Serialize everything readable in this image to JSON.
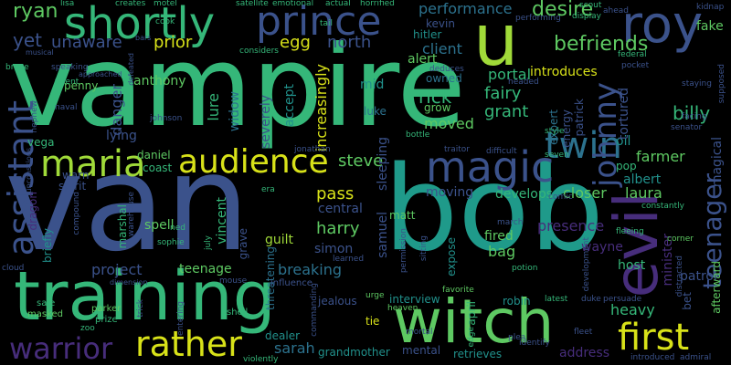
{
  "title": "",
  "words": [
    {
      "text": "vampire",
      "color": "#35b779"
    },
    {
      "text": "van",
      "color": "#3b528b"
    },
    {
      "text": "bob",
      "color": "#1f9a8a"
    },
    {
      "text": "training",
      "color": "#35b779"
    },
    {
      "text": "witch",
      "color": "#5ec962"
    },
    {
      "text": "shortly",
      "color": "#35b779"
    },
    {
      "text": "prince",
      "color": "#3b528b"
    },
    {
      "text": "u",
      "color": "#a0da39"
    },
    {
      "text": "roy",
      "color": "#3b528b"
    },
    {
      "text": "evil",
      "color": "#472d7b"
    },
    {
      "text": "magic",
      "color": "#3b528b"
    },
    {
      "text": "twin",
      "color": "#2c728e"
    },
    {
      "text": "maria",
      "color": "#a0da39"
    },
    {
      "text": "audience",
      "color": "#d8e219"
    },
    {
      "text": "assistant",
      "color": "#3b528b"
    },
    {
      "text": "rather",
      "color": "#d8e219"
    },
    {
      "text": "first",
      "color": "#d8e219"
    },
    {
      "text": "warrior",
      "color": "#472d7b"
    },
    {
      "text": "johnny",
      "color": "#3b528b"
    },
    {
      "text": "teenager",
      "color": "#3b528b"
    },
    {
      "text": "ryan",
      "color": "#5ec962"
    },
    {
      "text": "yet",
      "color": "#3b528b"
    },
    {
      "text": "unaware",
      "color": "#3b528b"
    },
    {
      "text": "prior",
      "color": "#d8e219"
    },
    {
      "text": "egg",
      "color": "#d8e219"
    },
    {
      "text": "north",
      "color": "#3b528b"
    },
    {
      "text": "client",
      "color": "#2c728e"
    },
    {
      "text": "befriends",
      "color": "#5ec962"
    },
    {
      "text": "performance",
      "color": "#2c728e"
    },
    {
      "text": "desire",
      "color": "#5ec962"
    },
    {
      "text": "kevin",
      "color": "#3b528b"
    },
    {
      "text": "hitler",
      "color": "#21918c"
    },
    {
      "text": "alert",
      "color": "#5ec962"
    },
    {
      "text": "introduces",
      "color": "#d8e219"
    },
    {
      "text": "fake",
      "color": "#5ec962"
    },
    {
      "text": "anthony",
      "color": "#5ec962"
    },
    {
      "text": "penny",
      "color": "#5ec962"
    },
    {
      "text": "danger",
      "color": "#3b528b"
    },
    {
      "text": "lure",
      "color": "#35b779"
    },
    {
      "text": "widow",
      "color": "#2c728e"
    },
    {
      "text": "severely",
      "color": "#3b528b"
    },
    {
      "text": "accept",
      "color": "#21918c"
    },
    {
      "text": "increasingly",
      "color": "#d8e219"
    },
    {
      "text": "rick",
      "color": "#35b779"
    },
    {
      "text": "grant",
      "color": "#35b779"
    },
    {
      "text": "moved",
      "color": "#5ec962"
    },
    {
      "text": "fairy",
      "color": "#35b779"
    },
    {
      "text": "portal",
      "color": "#35b779"
    },
    {
      "text": "owned",
      "color": "#2c728e"
    },
    {
      "text": "mid",
      "color": "#21918c"
    },
    {
      "text": "luke",
      "color": "#2c728e"
    },
    {
      "text": "grow",
      "color": "#5ec962"
    },
    {
      "text": "billy",
      "color": "#35b779"
    },
    {
      "text": "oil",
      "color": "#21918c"
    },
    {
      "text": "tortured",
      "color": "#3b528b"
    },
    {
      "text": "patrick",
      "color": "#3b528b"
    },
    {
      "text": "expert",
      "color": "#2c728e"
    },
    {
      "text": "energy",
      "color": "#3b528b"
    },
    {
      "text": "farmer",
      "color": "#5ec962"
    },
    {
      "text": "pop",
      "color": "#35b779"
    },
    {
      "text": "steve",
      "color": "#5ec962"
    },
    {
      "text": "sleeping",
      "color": "#3b528b"
    },
    {
      "text": "pass",
      "color": "#d8e219"
    },
    {
      "text": "daniel",
      "color": "#5ec962"
    },
    {
      "text": "coast",
      "color": "#35b779"
    },
    {
      "text": "lying",
      "color": "#3b528b"
    },
    {
      "text": "vega",
      "color": "#35b779"
    },
    {
      "text": "warn",
      "color": "#3b528b"
    },
    {
      "text": "spirit",
      "color": "#3b528b"
    },
    {
      "text": "moving",
      "color": "#3b528b"
    },
    {
      "text": "develops",
      "color": "#35b779"
    },
    {
      "text": "closer",
      "color": "#5ec962"
    },
    {
      "text": "laura",
      "color": "#5ec962"
    },
    {
      "text": "albert",
      "color": "#21918c"
    },
    {
      "text": "spell",
      "color": "#5ec962"
    },
    {
      "text": "vincent",
      "color": "#35b779"
    },
    {
      "text": "marshal",
      "color": "#35b779"
    },
    {
      "text": "harry",
      "color": "#5ec962"
    },
    {
      "text": "central",
      "color": "#3b528b"
    },
    {
      "text": "matt",
      "color": "#5ec962"
    },
    {
      "text": "simon",
      "color": "#3b528b"
    },
    {
      "text": "samuel",
      "color": "#3b528b"
    },
    {
      "text": "presence",
      "color": "#472d7b"
    },
    {
      "text": "fired",
      "color": "#5ec962"
    },
    {
      "text": "bag",
      "color": "#5ec962"
    },
    {
      "text": "wayne",
      "color": "#472d7b"
    },
    {
      "text": "host",
      "color": "#35b779"
    },
    {
      "text": "minister",
      "color": "#472d7b"
    },
    {
      "text": "magical",
      "color": "#3b528b"
    },
    {
      "text": "patrol",
      "color": "#3b528b"
    },
    {
      "text": "afterward",
      "color": "#5ec962"
    },
    {
      "text": "dragon",
      "color": "#472d7b"
    },
    {
      "text": "briefly",
      "color": "#21918c"
    },
    {
      "text": "project",
      "color": "#3b528b"
    },
    {
      "text": "teenage",
      "color": "#5ec962"
    },
    {
      "text": "grave",
      "color": "#3b528b"
    },
    {
      "text": "guilt",
      "color": "#a0da39"
    },
    {
      "text": "breaking",
      "color": "#2c728e"
    },
    {
      "text": "threatening",
      "color": "#2c728e"
    },
    {
      "text": "expose",
      "color": "#21918c"
    },
    {
      "text": "interview",
      "color": "#21918c"
    },
    {
      "text": "heavy",
      "color": "#35b779"
    },
    {
      "text": "robin",
      "color": "#21918c"
    },
    {
      "text": "april",
      "color": "#35b779"
    },
    {
      "text": "tie",
      "color": "#d8e219"
    },
    {
      "text": "jealous",
      "color": "#3b528b"
    },
    {
      "text": "sarah",
      "color": "#2c728e"
    },
    {
      "text": "dealer",
      "color": "#21918c"
    },
    {
      "text": "grandmother",
      "color": "#21918c"
    },
    {
      "text": "mental",
      "color": "#3b528b"
    },
    {
      "text": "retrieves",
      "color": "#21918c"
    },
    {
      "text": "address",
      "color": "#472d7b"
    },
    {
      "text": "sale",
      "color": "#35b779"
    },
    {
      "text": "masked",
      "color": "#5ec962"
    },
    {
      "text": "parker",
      "color": "#5ec962"
    },
    {
      "text": "prize",
      "color": "#35b779"
    },
    {
      "text": "zoo",
      "color": "#35b779"
    },
    {
      "text": "trick",
      "color": "#3b528b"
    },
    {
      "text": "entering",
      "color": "#3b528b"
    },
    {
      "text": "shell",
      "color": "#35b779"
    },
    {
      "text": "influence",
      "color": "#3b528b"
    },
    {
      "text": "commanding",
      "color": "#3b528b"
    },
    {
      "text": "urge",
      "color": "#5ec962"
    },
    {
      "text": "heaven",
      "color": "#5ec962"
    },
    {
      "text": "favorite",
      "color": "#5ec962"
    },
    {
      "text": "mortal",
      "color": "#3b528b"
    },
    {
      "text": "edge",
      "color": "#35b779"
    },
    {
      "text": "plea",
      "color": "#3b528b"
    },
    {
      "text": "identify",
      "color": "#3b528b"
    },
    {
      "text": "introduced",
      "color": "#3b528b"
    },
    {
      "text": "admiral",
      "color": "#3b528b"
    },
    {
      "text": "duke",
      "color": "#3b528b"
    },
    {
      "text": "persuade",
      "color": "#3b528b"
    },
    {
      "text": "latest",
      "color": "#35b779"
    },
    {
      "text": "fleet",
      "color": "#3b528b"
    },
    {
      "text": "bet",
      "color": "#3b528b"
    },
    {
      "text": "corner",
      "color": "#5ec962"
    },
    {
      "text": "satellite",
      "color": "#35b779"
    },
    {
      "text": "emotional",
      "color": "#35b779"
    },
    {
      "text": "actual",
      "color": "#35b779"
    },
    {
      "text": "horrified",
      "color": "#35b779"
    },
    {
      "text": "cook",
      "color": "#35b779"
    },
    {
      "text": "lisa",
      "color": "#35b779"
    },
    {
      "text": "creates",
      "color": "#35b779"
    },
    {
      "text": "motel",
      "color": "#35b779"
    },
    {
      "text": "considers",
      "color": "#35b779"
    },
    {
      "text": "tail",
      "color": "#35b779"
    },
    {
      "text": "performing",
      "color": "#3b528b"
    },
    {
      "text": "display",
      "color": "#35b779"
    },
    {
      "text": "scout",
      "color": "#35b779"
    },
    {
      "text": "ahead",
      "color": "#3b528b"
    },
    {
      "text": "kidnap",
      "color": "#3b528b"
    },
    {
      "text": "federal",
      "color": "#35b779"
    },
    {
      "text": "pocket",
      "color": "#3b528b"
    },
    {
      "text": "staying",
      "color": "#3b528b"
    },
    {
      "text": "supposed",
      "color": "#3b528b"
    },
    {
      "text": "senator",
      "color": "#3b528b"
    },
    {
      "text": "facing",
      "color": "#3b528b"
    },
    {
      "text": "bruce",
      "color": "#35b779"
    },
    {
      "text": "talent",
      "color": "#35b779"
    },
    {
      "text": "speaking",
      "color": "#3b528b"
    },
    {
      "text": "naval",
      "color": "#3b528b"
    },
    {
      "text": "nephew",
      "color": "#3b528b"
    },
    {
      "text": "johnson",
      "color": "#3b528b"
    },
    {
      "text": "deduces",
      "color": "#3b528b"
    },
    {
      "text": "headed",
      "color": "#3b528b"
    },
    {
      "text": "traitor",
      "color": "#3b528b"
    },
    {
      "text": "difficult",
      "color": "#3b528b"
    },
    {
      "text": "style",
      "color": "#35b779"
    },
    {
      "text": "bottle",
      "color": "#35b779"
    },
    {
      "text": "seven",
      "color": "#35b779"
    },
    {
      "text": "comic",
      "color": "#3b528b"
    },
    {
      "text": "constantly",
      "color": "#35b779"
    },
    {
      "text": "jonathan",
      "color": "#3b528b"
    },
    {
      "text": "era",
      "color": "#35b779"
    },
    {
      "text": "ned",
      "color": "#35b779"
    },
    {
      "text": "sophie",
      "color": "#35b779"
    },
    {
      "text": "july",
      "color": "#35b779"
    },
    {
      "text": "learned",
      "color": "#3b528b"
    },
    {
      "text": "march",
      "color": "#3b528b"
    },
    {
      "text": "fleeing",
      "color": "#35b779"
    },
    {
      "text": "permission",
      "color": "#3b528b"
    },
    {
      "text": "sitting",
      "color": "#3b528b"
    },
    {
      "text": "potion",
      "color": "#35b779"
    },
    {
      "text": "development",
      "color": "#3b528b"
    },
    {
      "text": "distracted",
      "color": "#3b528b"
    },
    {
      "text": "cloud",
      "color": "#3b528b"
    },
    {
      "text": "mouse",
      "color": "#3b528b"
    },
    {
      "text": "violently",
      "color": "#35b779"
    },
    {
      "text": "compound",
      "color": "#3b528b"
    },
    {
      "text": "warehouse",
      "color": "#3b528b"
    },
    {
      "text": "unconscious",
      "color": "#3b528b"
    },
    {
      "text": "dimension",
      "color": "#3b528b"
    },
    {
      "text": "approached",
      "color": "#3b528b"
    },
    {
      "text": "defeated",
      "color": "#3b528b"
    },
    {
      "text": "bars",
      "color": "#3b528b"
    },
    {
      "text": "musical",
      "color": "#3b528b"
    }
  ]
}
